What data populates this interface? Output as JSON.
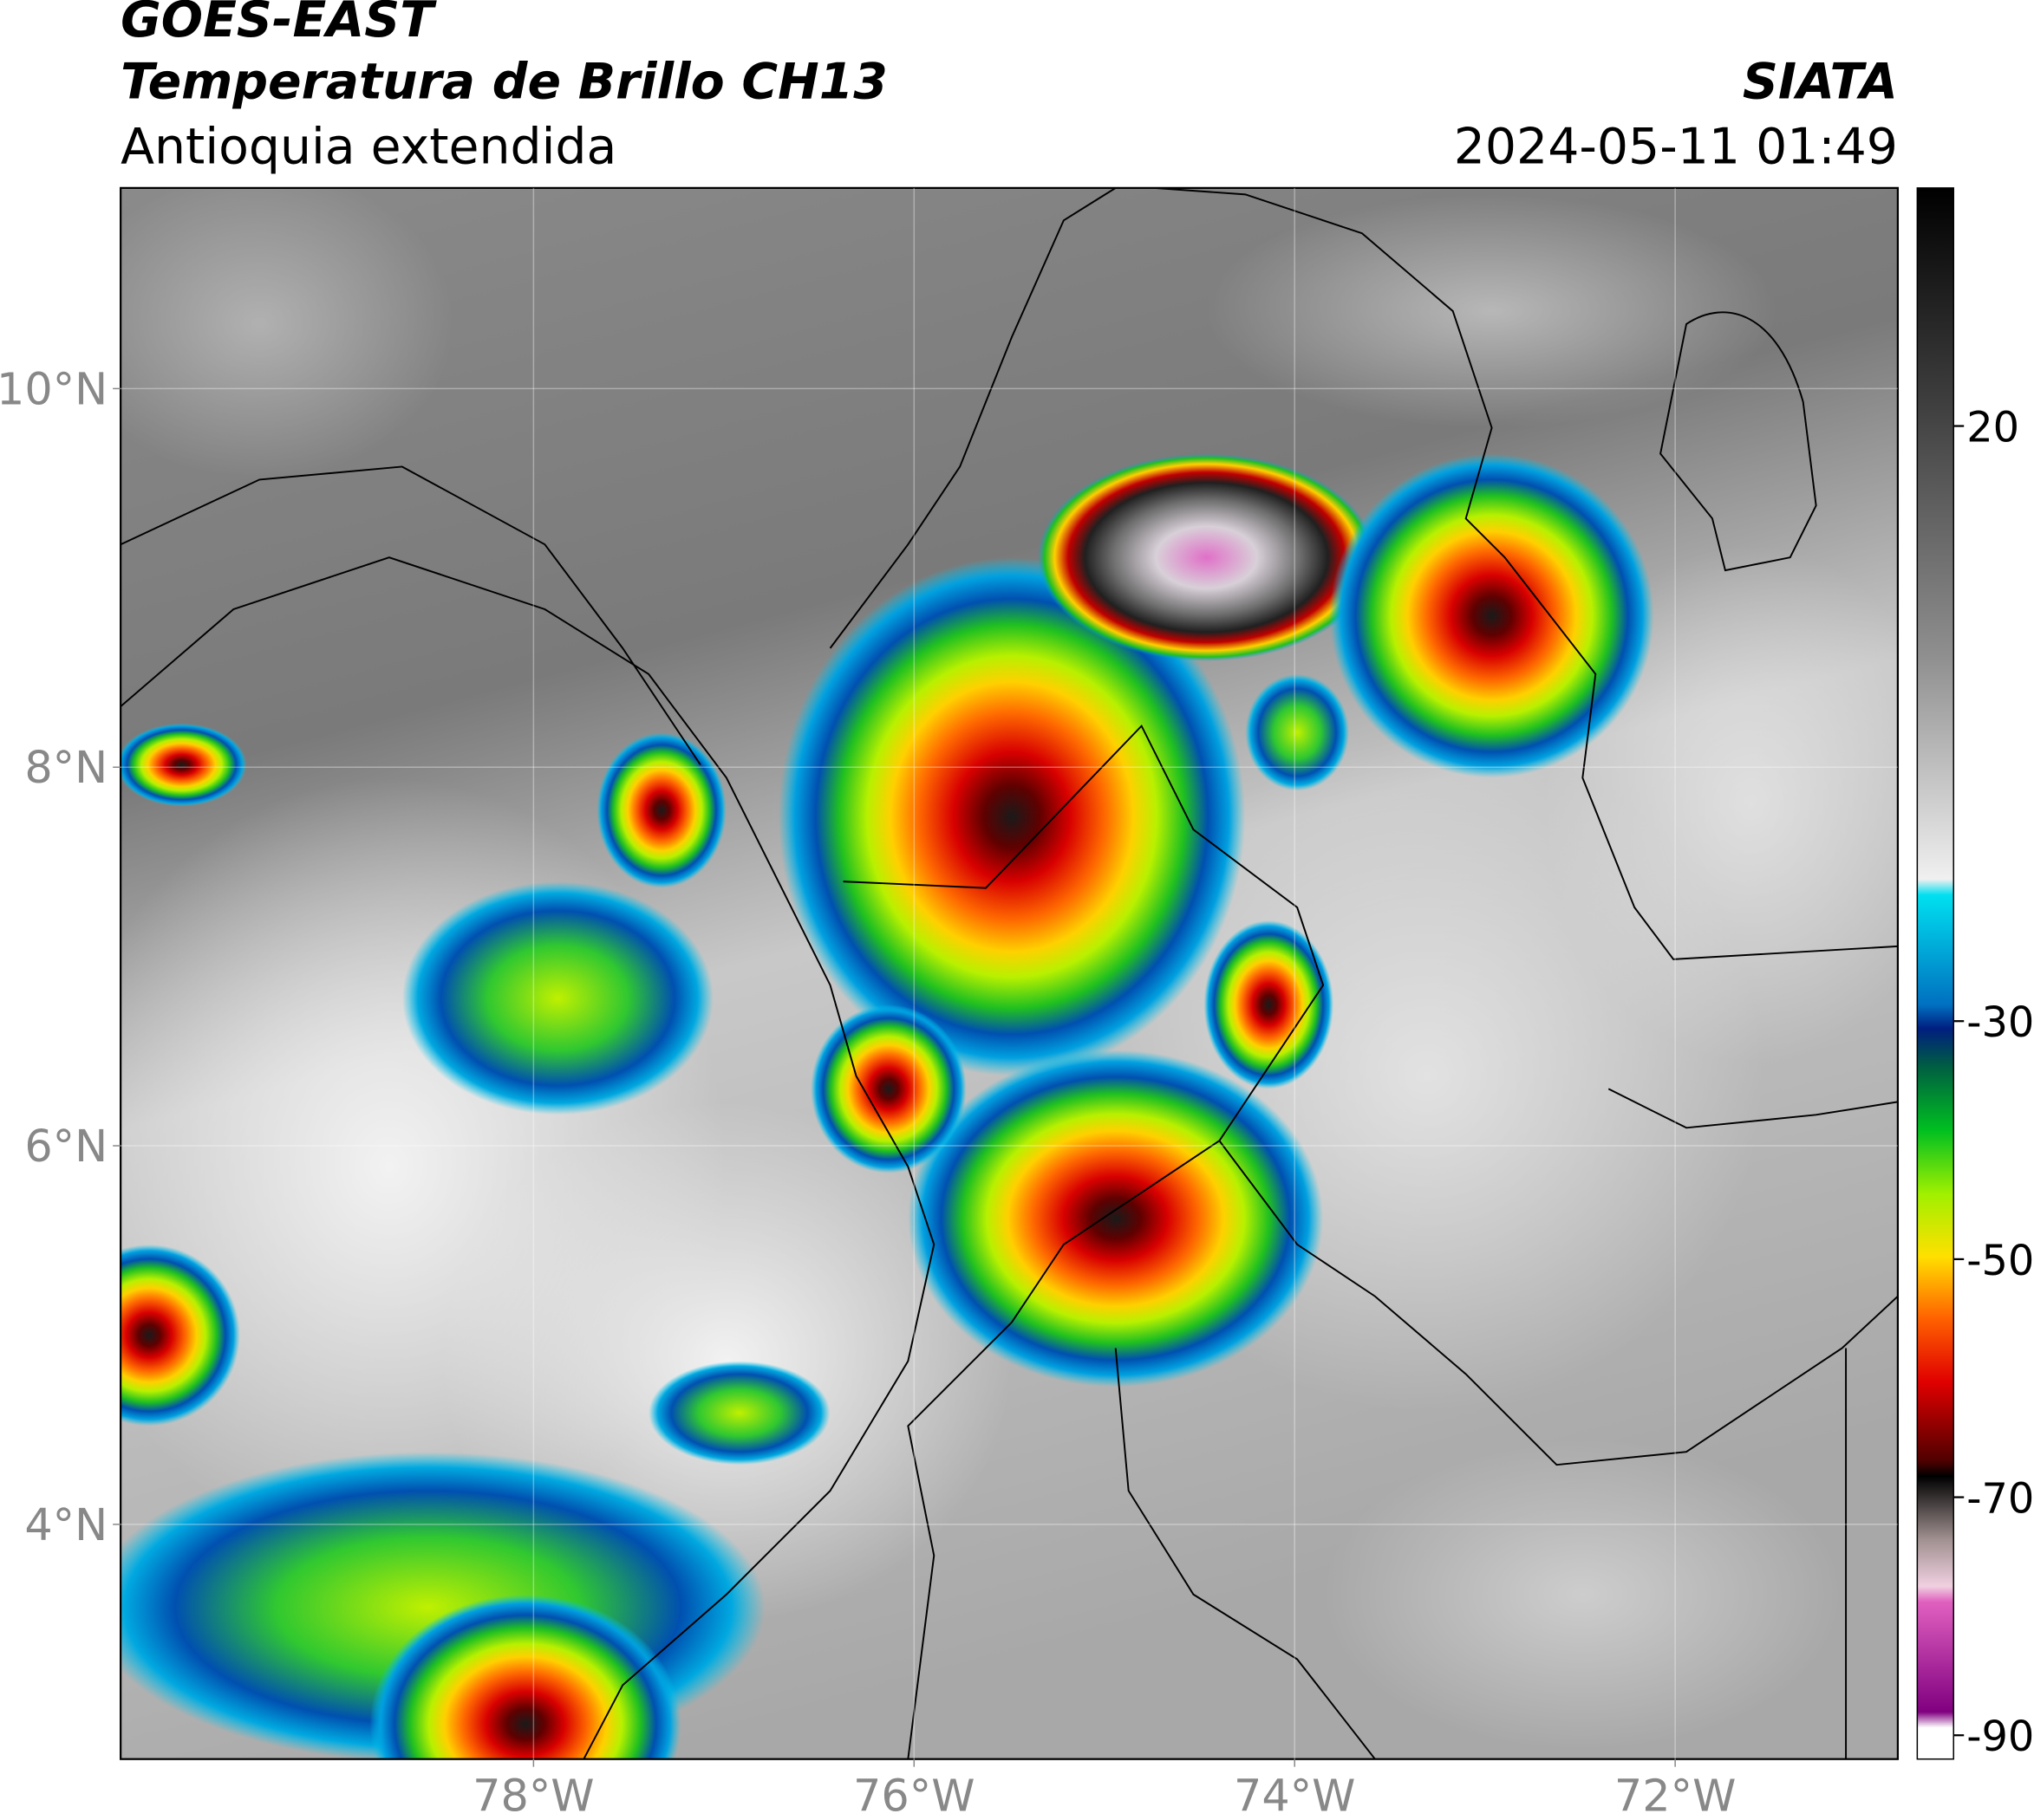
{
  "header": {
    "title": "GOES-EAST",
    "subtitle": "Temperatura de Brillo CH13",
    "region": "Antioquia extendida",
    "source": "SIATA",
    "datetime": "2024-05-11 01:49"
  },
  "map": {
    "lonlim": [
      -80.17,
      -70.83
    ],
    "latlim": [
      2.76,
      11.06
    ],
    "lonticks": [
      {
        "value": -78,
        "label": "78°W"
      },
      {
        "value": -76,
        "label": "76°W"
      },
      {
        "value": -74,
        "label": "74°W"
      },
      {
        "value": -72,
        "label": "72°W"
      }
    ],
    "latticks": [
      {
        "value": 10,
        "label": "10°N"
      },
      {
        "value": 8,
        "label": "8°N"
      },
      {
        "value": 6,
        "label": "6°N"
      },
      {
        "value": 4,
        "label": "4°N"
      }
    ],
    "grid": true
  },
  "colorbar": {
    "range": [
      -92,
      40
    ],
    "ticks": [
      20,
      -30,
      -50,
      -70,
      -90
    ]
  }
}
